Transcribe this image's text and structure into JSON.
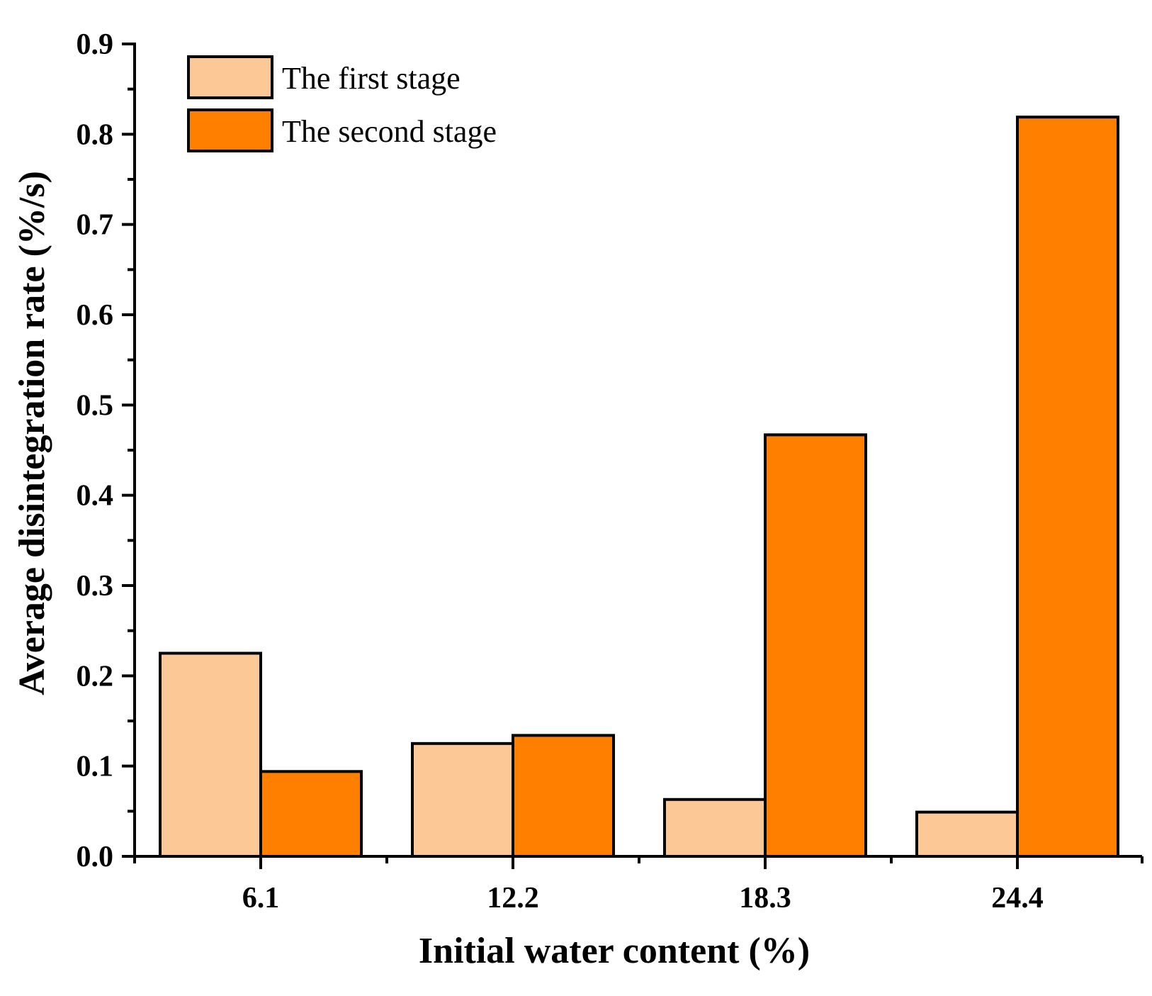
{
  "chart_data": {
    "type": "bar",
    "title": "",
    "xlabel": "Initial water content (%)",
    "ylabel": "Average disintegration rate (%/s)",
    "categories": [
      "6.1",
      "12.2",
      "18.3",
      "24.4"
    ],
    "series": [
      {
        "name": "The first stage",
        "color": "#FCC896",
        "values": [
          0.225,
          0.125,
          0.063,
          0.049
        ]
      },
      {
        "name": "The second stage",
        "color": "#FF8000",
        "values": [
          0.094,
          0.134,
          0.467,
          0.819
        ]
      }
    ],
    "ylim": [
      0,
      0.9
    ],
    "yticks": [
      "0.0",
      "0.1",
      "0.2",
      "0.3",
      "0.4",
      "0.5",
      "0.6",
      "0.7",
      "0.8",
      "0.9"
    ],
    "grid": false,
    "legend": "top-left"
  }
}
